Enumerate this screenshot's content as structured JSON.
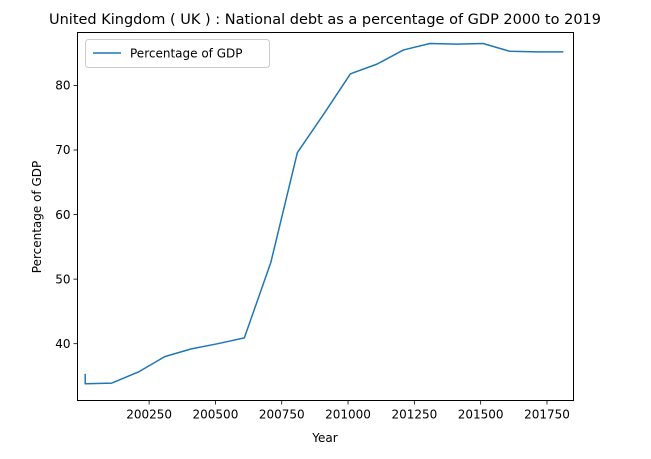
{
  "chart_data": {
    "type": "line",
    "title": "United Kingdom ( UK ) : National debt as a percentage of GDP 2000 to 2019",
    "xlabel": "Year",
    "ylabel": "Percentage of GDP",
    "xlim": [
      199980,
      201850
    ],
    "ylim": [
      31.2,
      88.2
    ],
    "x_ticks": [
      200250,
      200500,
      200750,
      201000,
      201250,
      201500,
      201750
    ],
    "x_tick_labels": [
      "200250",
      "200500",
      "200750",
      "201000",
      "201250",
      "201500",
      "201750"
    ],
    "y_ticks": [
      40,
      50,
      60,
      70,
      80
    ],
    "y_tick_labels": [
      "40",
      "50",
      "60",
      "70",
      "80"
    ],
    "grid": false,
    "legend": {
      "placement": "top-left",
      "entries": [
        "Percentage of GDP"
      ]
    },
    "series": [
      {
        "name": "Percentage of GDP",
        "color": "#1f77b4",
        "x": [
          200009,
          200009,
          200109,
          200209,
          200309,
          200409,
          200509,
          200609,
          200709,
          200809,
          200909,
          201009,
          201109,
          201209,
          201309,
          201409,
          201509,
          201609,
          201709,
          201809
        ],
        "y": [
          35.2,
          33.8,
          33.9,
          35.6,
          38.0,
          39.2,
          40.0,
          40.9,
          52.6,
          69.6,
          75.6,
          81.8,
          83.3,
          85.5,
          86.5,
          86.4,
          86.5,
          85.3,
          85.2,
          85.2
        ]
      }
    ]
  }
}
